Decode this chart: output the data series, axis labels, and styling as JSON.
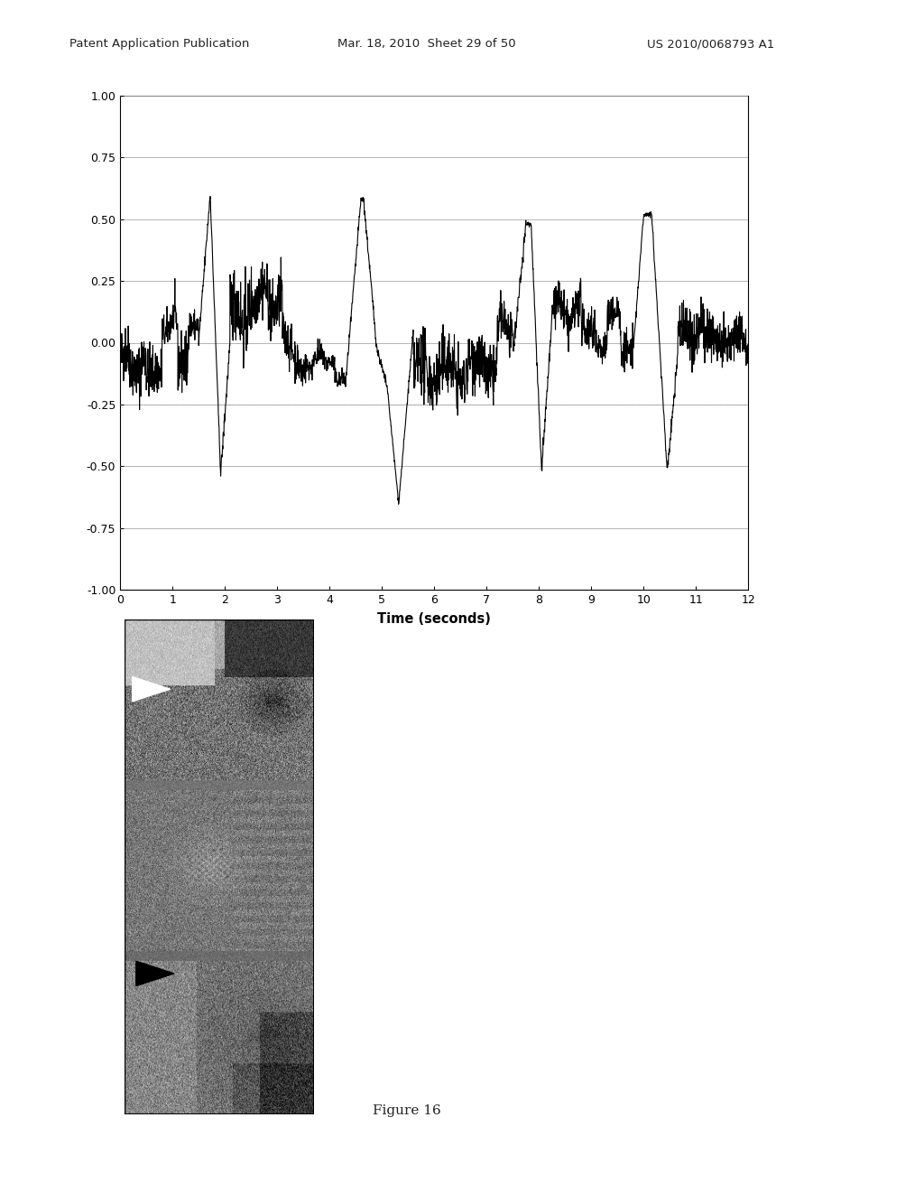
{
  "header_left": "Patent Application Publication",
  "header_mid": "Mar. 18, 2010  Sheet 29 of 50",
  "header_right": "US 2010/0068793 A1",
  "xlabel": "Time (seconds)",
  "xlim": [
    0,
    12
  ],
  "ylim": [
    -1.0,
    1.0
  ],
  "yticks": [
    -1.0,
    -0.75,
    -0.5,
    -0.25,
    0.0,
    0.25,
    0.5,
    0.75,
    1.0
  ],
  "yticklabels": [
    "-1.00",
    "-0.75",
    "-0.50",
    "-0.25",
    "0.00",
    "0.25",
    "0.50",
    "0.75",
    "1.00"
  ],
  "xticks": [
    0,
    1,
    2,
    3,
    4,
    5,
    6,
    7,
    8,
    9,
    10,
    11,
    12
  ],
  "figure_label": "Figure 16",
  "bg_color": "#ffffff",
  "line_color": "#000000",
  "dashed_line_y": -0.25,
  "dashed_line_color": "#aaaaaa",
  "grid_color": "#aaaaaa"
}
